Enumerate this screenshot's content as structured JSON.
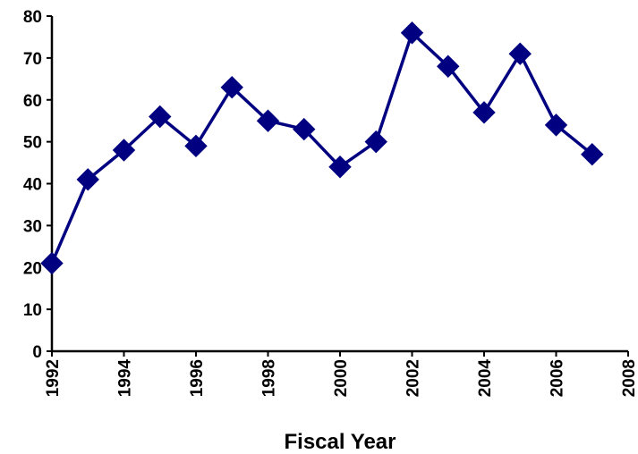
{
  "chart_data": {
    "type": "line",
    "title": "",
    "xlabel": "Fiscal Year",
    "ylabel": "",
    "x": [
      1992,
      1993,
      1994,
      1995,
      1996,
      1997,
      1998,
      1999,
      2000,
      2001,
      2002,
      2003,
      2004,
      2005,
      2006,
      2007
    ],
    "series": [
      {
        "values": [
          21,
          41,
          48,
          56,
          49,
          63,
          55,
          53,
          44,
          50,
          76,
          68,
          57,
          71,
          54,
          47
        ],
        "color": "#000080",
        "marker": "diamond"
      }
    ],
    "xlim": [
      1992,
      2008
    ],
    "ylim": [
      0,
      80
    ],
    "xticks": [
      "1992",
      "1994",
      "1996",
      "1998",
      "2000",
      "2002",
      "2004",
      "2006",
      "2008"
    ],
    "yticks": [
      "0",
      "10",
      "20",
      "30",
      "40",
      "50",
      "60",
      "70",
      "80"
    ],
    "grid": false,
    "legend": "none"
  }
}
